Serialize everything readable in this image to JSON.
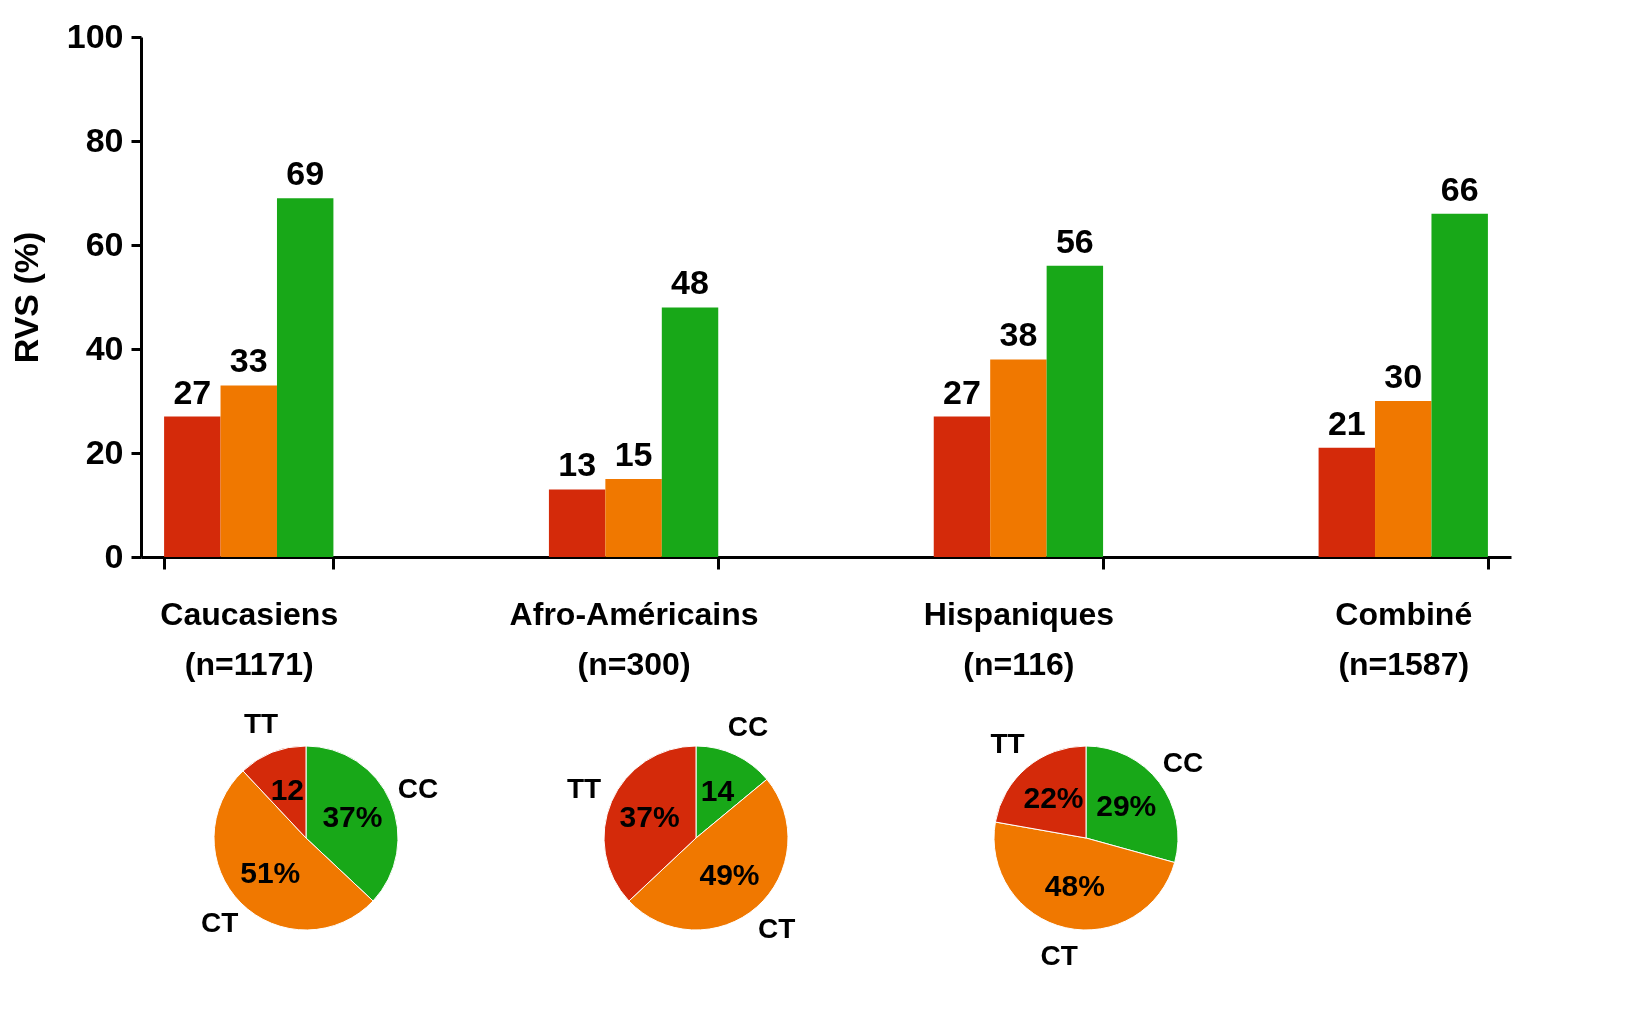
{
  "chart_data": [
    {
      "type": "bar",
      "ylabel": "RVS (%)",
      "categories": [
        "Caucasiens\n(n=1171)",
        "Afro-Américains\n(n=300)",
        "Hispaniques\n(n=116)",
        "Combiné\n(n=1587)"
      ],
      "series": [
        {
          "color": "#d42a0a",
          "values": [
            27,
            13,
            27,
            21
          ]
        },
        {
          "color": "#f07800",
          "values": [
            33,
            15,
            38,
            30
          ]
        },
        {
          "color": "#18a818",
          "values": [
            69,
            48,
            56,
            66
          ]
        }
      ],
      "ylim": [
        0,
        100
      ],
      "yticks": [
        0,
        20,
        40,
        60,
        80,
        100
      ],
      "data_labels": true,
      "grid": false,
      "legend": false
    },
    {
      "type": "pie",
      "categories": [
        "CC",
        "CT",
        "TT"
      ],
      "values": [
        37,
        51,
        12
      ],
      "colors": [
        "#18a818",
        "#f07800",
        "#d42a0a"
      ],
      "value_labels": [
        "37%",
        "51%",
        "12"
      ],
      "legend": false
    },
    {
      "type": "pie",
      "categories": [
        "CC",
        "CT",
        "TT"
      ],
      "values": [
        14,
        49,
        37
      ],
      "colors": [
        "#18a818",
        "#f07800",
        "#d42a0a"
      ],
      "value_labels": [
        "14",
        "49%",
        "37%"
      ],
      "legend": false
    },
    {
      "type": "pie",
      "categories": [
        "CC",
        "CT",
        "TT"
      ],
      "values": [
        29,
        48,
        22
      ],
      "colors": [
        "#18a818",
        "#f07800",
        "#d42a0a"
      ],
      "value_labels": [
        "29%",
        "48%",
        "22%"
      ],
      "legend": false
    }
  ]
}
